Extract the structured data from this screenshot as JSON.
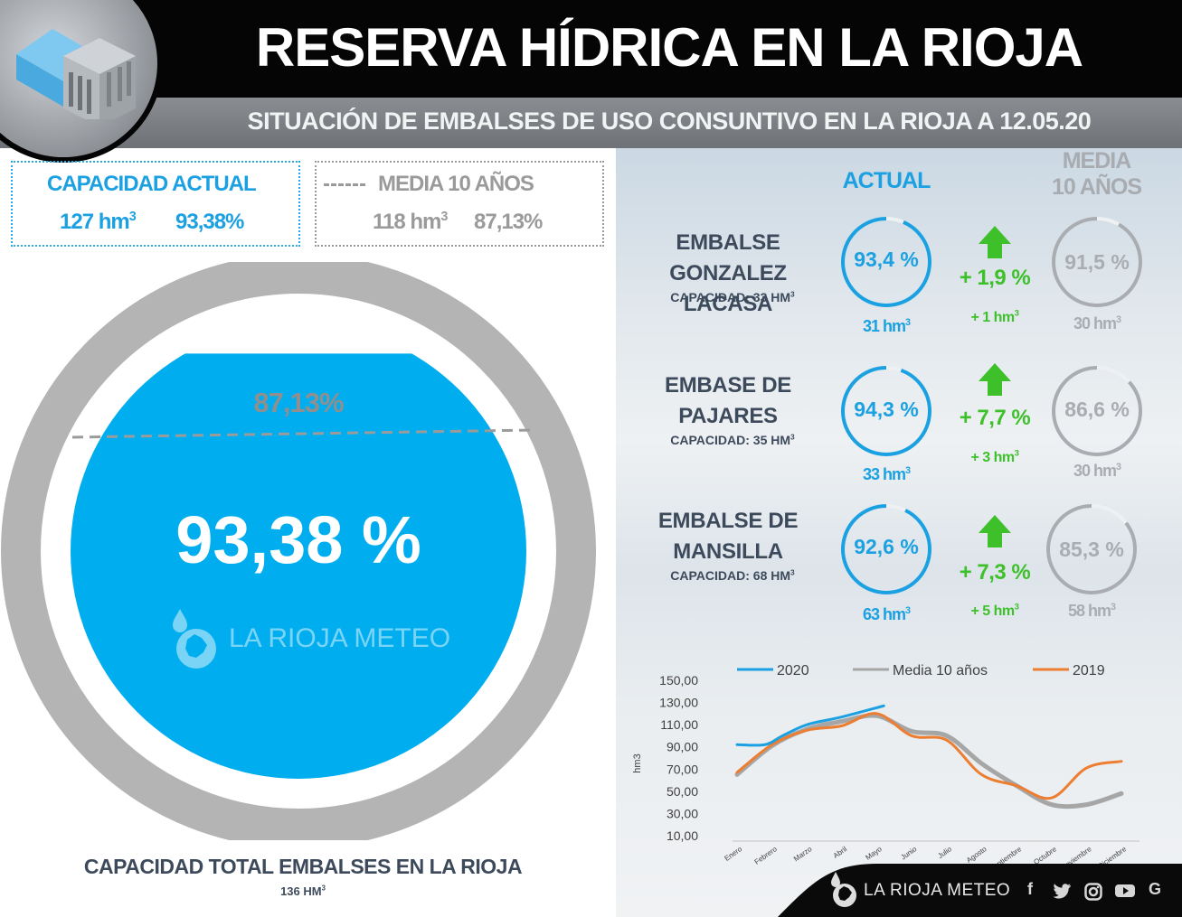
{
  "header": {
    "title": "RESERVA HÍDRICA EN LA RIOJA",
    "subtitle": "SITUACIÓN DE EMBALSES DE USO CONSUNTIVO EN LA RIOJA A 12.05.20"
  },
  "summary": {
    "actual": {
      "label": "CAPACIDAD ACTUAL",
      "volume": "127 hm",
      "volume_sup": "3",
      "percent": "93,38%"
    },
    "media": {
      "label": "MEDIA 10 AÑOS",
      "volume": "118 hm",
      "volume_sup": "3",
      "percent": "87,13%"
    }
  },
  "gauge": {
    "actual_percent": 93.38,
    "actual_label": "93,38 %",
    "media_percent": 87.13,
    "media_label": "87,13%",
    "watermark": "LA RIOJA METEO",
    "total_title": "CAPACIDAD TOTAL EMBALSES EN LA RIOJA",
    "total_capacity": "136 HM",
    "total_capacity_sup": "3"
  },
  "columns": {
    "actual": "ACTUAL",
    "media_line1": "MEDIA",
    "media_line2": "10 AÑOS"
  },
  "reservoirs": [
    {
      "name_line1": "EMBALSE",
      "name_line2": "GONZALEZ LACASA",
      "capacity": "CAPACIDAD: 33 HM",
      "capacity_sup": "3",
      "actual_pct": 93.4,
      "actual_label": "93,4 %",
      "actual_hm": "31 hm",
      "actual_hm_sup": "3",
      "diff_label": "+ 1,9 %",
      "diff_hm": "+ 1 hm",
      "diff_hm_sup": "3",
      "media_pct": 91.5,
      "media_label": "91,5 %",
      "media_hm": "30 hm",
      "media_hm_sup": "3"
    },
    {
      "name_line1": "EMBASE DE",
      "name_line2": "PAJARES",
      "capacity": "CAPACIDAD: 35 HM",
      "capacity_sup": "3",
      "actual_pct": 94.3,
      "actual_label": "94,3 %",
      "actual_hm": "33 hm",
      "actual_hm_sup": "3",
      "diff_label": "+ 7,7 %",
      "diff_hm": "+ 3 hm",
      "diff_hm_sup": "3",
      "media_pct": 86.6,
      "media_label": "86,6 %",
      "media_hm": "30 hm",
      "media_hm_sup": "3"
    },
    {
      "name_line1": "EMBALSE DE",
      "name_line2": "MANSILLA",
      "capacity": "CAPACIDAD: 68 HM",
      "capacity_sup": "3",
      "actual_pct": 92.6,
      "actual_label": "92,6 %",
      "actual_hm": "63 hm",
      "actual_hm_sup": "3",
      "diff_label": "+ 7,3 %",
      "diff_hm": "+ 5 hm",
      "diff_hm_sup": "3",
      "media_pct": 85.3,
      "media_label": "85,3 %",
      "media_hm": "58 hm",
      "media_hm_sup": "3"
    }
  ],
  "colors": {
    "accent_blue": "#1ba1e2",
    "gauge_fill": "#00aeef",
    "media_grey": "#a9adb1",
    "positive_green": "#3ec02b",
    "series_2019": "#ed7d31"
  },
  "chart_data": {
    "type": "line",
    "ylabel": "hm3",
    "ylim": [
      10,
      150
    ],
    "yticks": [
      "150,00",
      "130,00",
      "110,00",
      "90,00",
      "70,00",
      "50,00",
      "30,00",
      "10,00"
    ],
    "ytick_values": [
      150,
      130,
      110,
      90,
      70,
      50,
      30,
      10
    ],
    "categories": [
      "Enero",
      "Febrero",
      "Marzo",
      "Abril",
      "Mayo",
      "Junio",
      "Julio",
      "Agosto",
      "Septiembre",
      "Octubre",
      "Noviembre",
      "Diciembre"
    ],
    "legend_position": "top",
    "grid": false,
    "series": [
      {
        "name": "2020",
        "color": "#1ba1e2",
        "width": 3,
        "values": [
          [
            0,
            92
          ],
          [
            0.8,
            92
          ],
          [
            1.3,
            100
          ],
          [
            2.0,
            110
          ],
          [
            3.0,
            117
          ],
          [
            4.2,
            127
          ]
        ]
      },
      {
        "name": "Media 10 años",
        "color": "#a6a6a6",
        "width": 5,
        "values": [
          [
            0,
            65
          ],
          [
            1,
            91
          ],
          [
            2,
            106
          ],
          [
            3,
            113
          ],
          [
            4,
            118
          ],
          [
            5,
            104
          ],
          [
            6,
            100
          ],
          [
            7,
            75
          ],
          [
            8,
            55
          ],
          [
            9,
            38
          ],
          [
            10,
            38
          ],
          [
            11,
            48
          ]
        ]
      },
      {
        "name": "2019",
        "color": "#ed7d31",
        "width": 3,
        "values": [
          [
            0,
            67
          ],
          [
            1,
            92
          ],
          [
            2,
            105
          ],
          [
            3,
            109
          ],
          [
            4,
            120
          ],
          [
            5,
            100
          ],
          [
            6,
            96
          ],
          [
            7,
            65
          ],
          [
            8,
            55
          ],
          [
            9,
            44
          ],
          [
            10,
            71
          ],
          [
            11,
            77
          ]
        ]
      }
    ]
  },
  "footer": {
    "brand": "LA RIOJA METEO",
    "social": [
      "f",
      "t",
      "ig",
      "yt",
      "G"
    ]
  }
}
